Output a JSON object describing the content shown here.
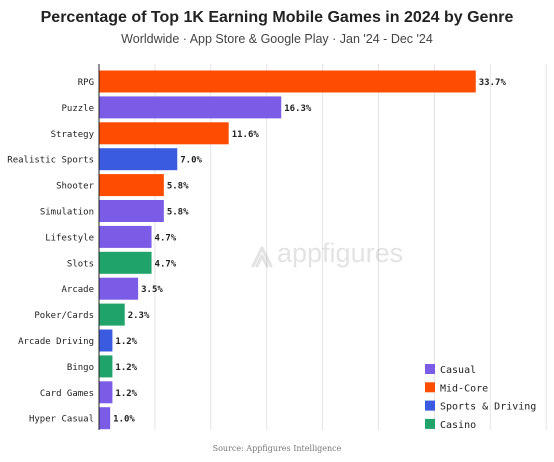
{
  "header": {
    "title": "Percentage of Top 1K Earning Mobile Games in 2024 by Genre",
    "subtitle": "Worldwide · App Store & Google Play · Jan '24 - Dec '24"
  },
  "watermark": {
    "text": "appfigures"
  },
  "footer": {
    "source": "Source: Appfigures Intelligence"
  },
  "chart_data": {
    "type": "bar",
    "orientation": "horizontal",
    "categories": [
      "RPG",
      "Puzzle",
      "Strategy",
      "Realistic Sports",
      "Shooter",
      "Simulation",
      "Lifestyle",
      "Slots",
      "Arcade",
      "Poker/Cards",
      "Arcade Driving",
      "Bingo",
      "Card Games",
      "Hyper Casual"
    ],
    "values": [
      33.7,
      16.3,
      11.6,
      7.0,
      5.8,
      5.8,
      4.7,
      4.7,
      3.5,
      2.3,
      1.2,
      1.2,
      1.2,
      1.0
    ],
    "data_labels": [
      "33.7%",
      "16.3%",
      "11.6%",
      "7.0%",
      "5.8%",
      "5.8%",
      "4.7%",
      "4.7%",
      "3.5%",
      "2.3%",
      "1.2%",
      "1.2%",
      "1.2%",
      "1.0%"
    ],
    "groups": [
      "Mid-Core",
      "Casual",
      "Mid-Core",
      "Sports & Driving",
      "Mid-Core",
      "Casual",
      "Casual",
      "Casino",
      "Casual",
      "Casino",
      "Sports & Driving",
      "Casino",
      "Casual",
      "Casual"
    ],
    "legend": [
      {
        "name": "Casual",
        "color": "#7B5CE6"
      },
      {
        "name": "Mid-Core",
        "color": "#FF4D00"
      },
      {
        "name": "Sports & Driving",
        "color": "#3A5BE0"
      },
      {
        "name": "Casino",
        "color": "#1FA36B"
      }
    ],
    "legend_position": "bottom-right",
    "xlim": [
      0,
      35
    ],
    "grid": true,
    "title": "Percentage of Top 1K Earning Mobile Games in 2024 by Genre"
  }
}
